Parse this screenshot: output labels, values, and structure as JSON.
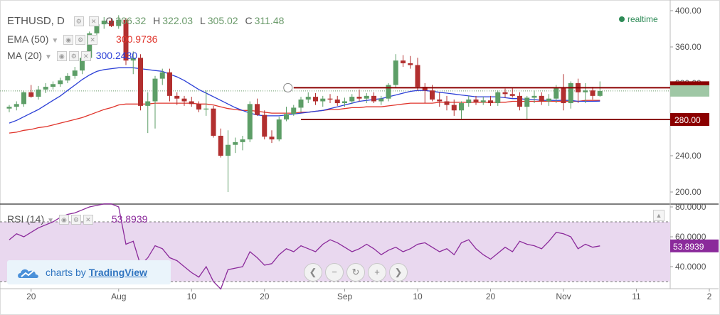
{
  "header": {
    "symbol": "ETHUSD, D",
    "open_label": "O",
    "open_value": "306.32",
    "high_label": "H",
    "high_value": "322.03",
    "low_label": "L",
    "low_value": "305.02",
    "close_label": "C",
    "close_value": "311.48"
  },
  "indicators": {
    "ema": {
      "label": "EMA (50)",
      "value": "300.9736",
      "color": "#e0342b"
    },
    "ma": {
      "label": "MA (20)",
      "value": "300.2430",
      "color": "#2b3fd6"
    },
    "rsi": {
      "label": "RSI (14)",
      "value": "53.8939",
      "color": "#8b2a9b"
    }
  },
  "realtime_label": "realtime",
  "branding": {
    "prefix": "charts by",
    "name": "TradingView"
  },
  "navigation": {
    "back": "❮",
    "zoom_out": "−",
    "reset": "↻",
    "zoom_in": "+",
    "forward": "❯"
  },
  "colors": {
    "up": "#5d9e67",
    "down": "#b22f2f",
    "level": "#8b0000",
    "rsi_band": "#e9d8ef",
    "rsi_line": "#8b2a9b"
  },
  "chart_data": {
    "type": "candlestick",
    "title": "ETHUSD, D",
    "price_axis": {
      "min": 190,
      "max": 400,
      "ticks": [
        "400.00",
        "360.00",
        "320.00",
        "280.00",
        "240.00",
        "200.00"
      ]
    },
    "rsi_axis": {
      "min": 25,
      "max": 83,
      "ticks": [
        "80.0000",
        "60.0000",
        "40.0000"
      ],
      "upper_band": 70,
      "lower_band": 30
    },
    "x_axis": {
      "labels": [
        {
          "text": "20",
          "i": 3
        },
        {
          "text": "Aug",
          "i": 15
        },
        {
          "text": "10",
          "i": 25
        },
        {
          "text": "20",
          "i": 35
        },
        {
          "text": "Sep",
          "i": 46
        },
        {
          "text": "10",
          "i": 56
        },
        {
          "text": "20",
          "i": 66
        },
        {
          "text": "Nov",
          "i": 76
        },
        {
          "text": "11",
          "i": 86
        },
        {
          "text": "2",
          "i": 96
        }
      ]
    },
    "levels": [
      {
        "value": 315,
        "label": "315.00",
        "start_i": 39
      },
      {
        "value": 280,
        "label": "280.00",
        "start_i": 40
      }
    ],
    "last_price": 311.48,
    "candles": [
      [
        292,
        296,
        288,
        294
      ],
      [
        294,
        300,
        290,
        297
      ],
      [
        297,
        312,
        294,
        310
      ],
      [
        310,
        318,
        304,
        305
      ],
      [
        305,
        317,
        302,
        313
      ],
      [
        313,
        320,
        309,
        316
      ],
      [
        316,
        322,
        313,
        319
      ],
      [
        319,
        326,
        316,
        323
      ],
      [
        323,
        331,
        320,
        328
      ],
      [
        328,
        338,
        325,
        334
      ],
      [
        334,
        350,
        330,
        348
      ],
      [
        348,
        377,
        345,
        375
      ],
      [
        375,
        390,
        370,
        385
      ],
      [
        385,
        393,
        380,
        389
      ],
      [
        389,
        392,
        382,
        383
      ],
      [
        383,
        395,
        380,
        390
      ],
      [
        390,
        392,
        340,
        345
      ],
      [
        345,
        355,
        330,
        348
      ],
      [
        348,
        352,
        290,
        295
      ],
      [
        295,
        310,
        265,
        300
      ],
      [
        300,
        328,
        270,
        325
      ],
      [
        325,
        336,
        318,
        332
      ],
      [
        332,
        336,
        300,
        306
      ],
      [
        306,
        310,
        296,
        303
      ],
      [
        303,
        306,
        295,
        300
      ],
      [
        300,
        305,
        294,
        297
      ],
      [
        297,
        300,
        288,
        291
      ],
      [
        291,
        312,
        284,
        292
      ],
      [
        292,
        295,
        260,
        262
      ],
      [
        262,
        270,
        238,
        240
      ],
      [
        240,
        268,
        200,
        252
      ],
      [
        252,
        260,
        243,
        255
      ],
      [
        255,
        262,
        246,
        258
      ],
      [
        258,
        300,
        255,
        297
      ],
      [
        297,
        303,
        284,
        285
      ],
      [
        285,
        290,
        258,
        261
      ],
      [
        261,
        268,
        254,
        258
      ],
      [
        258,
        283,
        256,
        280
      ],
      [
        280,
        294,
        278,
        286
      ],
      [
        286,
        296,
        284,
        293
      ],
      [
        293,
        305,
        288,
        302
      ],
      [
        302,
        310,
        298,
        305
      ],
      [
        305,
        309,
        296,
        300
      ],
      [
        300,
        306,
        294,
        303
      ],
      [
        303,
        308,
        298,
        302
      ],
      [
        302,
        306,
        295,
        298
      ],
      [
        298,
        304,
        294,
        300
      ],
      [
        300,
        308,
        297,
        305
      ],
      [
        305,
        313,
        300,
        303
      ],
      [
        303,
        309,
        298,
        306
      ],
      [
        306,
        310,
        298,
        300
      ],
      [
        300,
        306,
        296,
        303
      ],
      [
        303,
        320,
        300,
        318
      ],
      [
        318,
        352,
        315,
        345
      ],
      [
        345,
        351,
        338,
        342
      ],
      [
        342,
        350,
        336,
        340
      ],
      [
        340,
        348,
        312,
        316
      ],
      [
        316,
        320,
        298,
        312
      ],
      [
        312,
        318,
        300,
        302
      ],
      [
        302,
        310,
        294,
        300
      ],
      [
        300,
        306,
        290,
        296
      ],
      [
        296,
        302,
        284,
        290
      ],
      [
        290,
        300,
        280,
        298
      ],
      [
        298,
        306,
        294,
        302
      ],
      [
        302,
        306,
        296,
        299
      ],
      [
        299,
        305,
        296,
        301
      ],
      [
        301,
        306,
        295,
        298
      ],
      [
        298,
        312,
        295,
        310
      ],
      [
        310,
        314,
        304,
        308
      ],
      [
        308,
        315,
        304,
        306
      ],
      [
        306,
        310,
        290,
        294
      ],
      [
        294,
        306,
        280,
        304
      ],
      [
        304,
        312,
        298,
        306
      ],
      [
        306,
        310,
        296,
        300
      ],
      [
        300,
        308,
        295,
        303
      ],
      [
        303,
        318,
        298,
        315
      ],
      [
        315,
        330,
        290,
        298
      ],
      [
        298,
        322,
        292,
        320
      ],
      [
        320,
        325,
        298,
        310
      ],
      [
        310,
        320,
        298,
        312
      ],
      [
        312,
        316,
        302,
        306
      ],
      [
        306,
        322,
        305,
        311.48
      ]
    ],
    "ema50": [
      265,
      266,
      268,
      269,
      271,
      272,
      274,
      276,
      278,
      280,
      282,
      285,
      288,
      291,
      293,
      296,
      297,
      297,
      297,
      297,
      298,
      298,
      298,
      298,
      298,
      298,
      297,
      297,
      296,
      294,
      292,
      291,
      290,
      290,
      289,
      288,
      287,
      287,
      287,
      287,
      288,
      288,
      289,
      290,
      291,
      291,
      292,
      293,
      293,
      294,
      294,
      294,
      295,
      296,
      297,
      298,
      298,
      298,
      298,
      299,
      299,
      299,
      299,
      299,
      299,
      299,
      299,
      299,
      299,
      300,
      300,
      300,
      300,
      300,
      300,
      300,
      300,
      300,
      300,
      301,
      301,
      301
    ],
    "ma20": [
      276,
      279,
      283,
      287,
      291,
      296,
      301,
      306,
      312,
      318,
      324,
      329,
      333,
      335,
      336,
      337,
      337,
      337,
      336,
      335,
      334,
      333,
      330,
      327,
      323,
      318,
      313,
      309,
      305,
      301,
      297,
      293,
      290,
      287,
      285,
      284,
      284,
      284,
      285,
      286,
      287,
      288,
      289,
      290,
      292,
      294,
      296,
      298,
      300,
      301,
      302,
      303,
      305,
      307,
      309,
      311,
      312,
      312,
      311,
      310,
      309,
      308,
      307,
      306,
      305,
      305,
      305,
      305,
      304,
      303,
      303,
      302,
      302,
      301,
      301,
      301,
      301,
      301,
      300,
      300,
      300,
      300.24
    ],
    "rsi": [
      58,
      62,
      60,
      63,
      66,
      68,
      70,
      73,
      75,
      76,
      78,
      80,
      81,
      82,
      82,
      80,
      55,
      57,
      41,
      46,
      54,
      52,
      46,
      44,
      40,
      36,
      33,
      40,
      30,
      25,
      38,
      39,
      40,
      50,
      46,
      41,
      42,
      48,
      52,
      50,
      54,
      52,
      50,
      55,
      58,
      56,
      53,
      50,
      52,
      55,
      52,
      48,
      51,
      53,
      50,
      52,
      55,
      56,
      53,
      50,
      52,
      48,
      56,
      58,
      52,
      48,
      45,
      49,
      53,
      50,
      57,
      55,
      54,
      52,
      57,
      63,
      62,
      60,
      52,
      55,
      53,
      53.89
    ]
  }
}
